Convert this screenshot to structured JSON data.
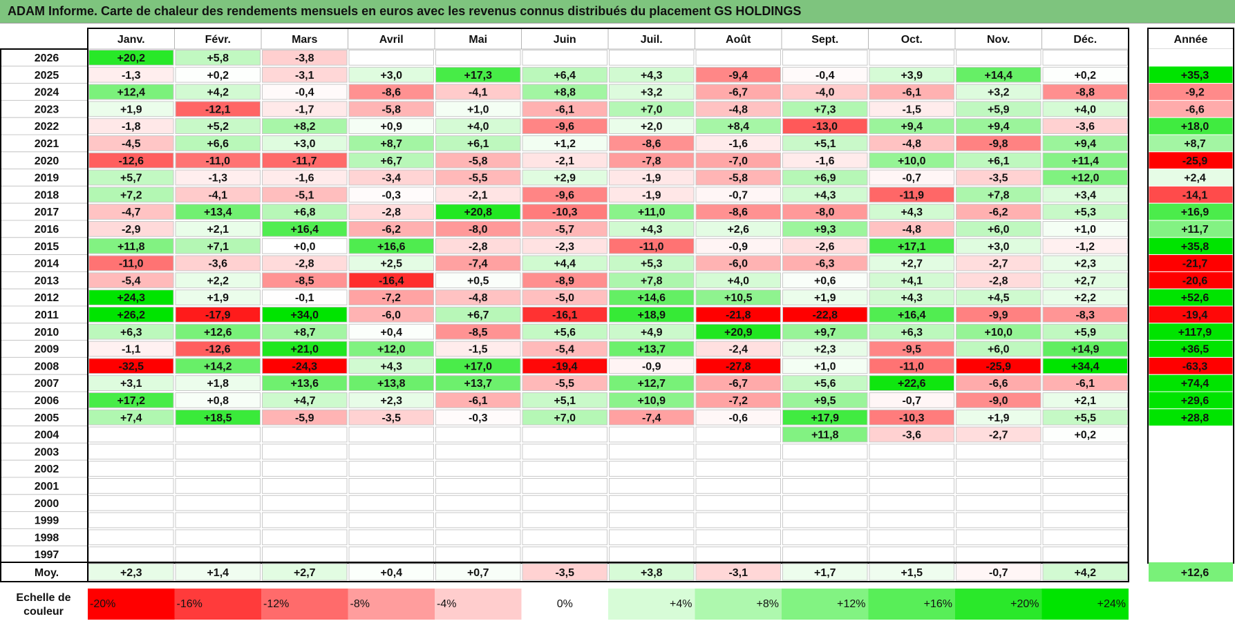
{
  "title": "ADAM Informe. Carte de chaleur des rendements mensuels en euros avec les revenus connus distribués du placement GS HOLDINGS",
  "chart_data": {
    "type": "heatmap",
    "months": [
      "Janv.",
      "Févr.",
      "Mars",
      "Avril",
      "Mai",
      "Juin",
      "Juil.",
      "Août",
      "Sept.",
      "Oct.",
      "Nov.",
      "Déc."
    ],
    "year_column_label": "Année",
    "rows": [
      {
        "year": "2026",
        "values": [
          "+20,2",
          "+5,8",
          "-3,8",
          "",
          "",
          "",
          "",
          "",
          "",
          "",
          "",
          ""
        ],
        "annual": ""
      },
      {
        "year": "2025",
        "values": [
          "-1,3",
          "+0,2",
          "-3,1",
          "+3,0",
          "+17,3",
          "+6,4",
          "+4,3",
          "-9,4",
          "-0,4",
          "+3,9",
          "+14,4",
          "+0,2"
        ],
        "annual": "+35,3"
      },
      {
        "year": "2024",
        "values": [
          "+12,4",
          "+4,2",
          "-0,4",
          "-8,6",
          "-4,1",
          "+8,8",
          "+3,2",
          "-6,7",
          "-4,0",
          "-6,1",
          "+3,2",
          "-8,8"
        ],
        "annual": "-9,2"
      },
      {
        "year": "2023",
        "values": [
          "+1,9",
          "-12,1",
          "-1,7",
          "-5,8",
          "+1,0",
          "-6,1",
          "+7,0",
          "-4,8",
          "+7,3",
          "-1,5",
          "+5,9",
          "+4,0"
        ],
        "annual": "-6,6"
      },
      {
        "year": "2022",
        "values": [
          "-1,8",
          "+5,2",
          "+8,2",
          "+0,9",
          "+4,0",
          "-9,6",
          "+2,0",
          "+8,4",
          "-13,0",
          "+9,4",
          "+9,4",
          "-3,6"
        ],
        "annual": "+18,0"
      },
      {
        "year": "2021",
        "values": [
          "-4,5",
          "+6,6",
          "+3,0",
          "+8,7",
          "+6,1",
          "+1,2",
          "-8,6",
          "-1,6",
          "+5,1",
          "-4,8",
          "-9,8",
          "+9,4"
        ],
        "annual": "+8,7"
      },
      {
        "year": "2020",
        "values": [
          "-12,6",
          "-11,0",
          "-11,7",
          "+6,7",
          "-5,8",
          "-2,1",
          "-7,8",
          "-7,0",
          "-1,6",
          "+10,0",
          "+6,1",
          "+11,4"
        ],
        "annual": "-25,9"
      },
      {
        "year": "2019",
        "values": [
          "+5,7",
          "-1,3",
          "-1,6",
          "-3,4",
          "-5,5",
          "+2,9",
          "-1,9",
          "-5,8",
          "+6,9",
          "-0,7",
          "-3,5",
          "+12,0"
        ],
        "annual": "+2,4"
      },
      {
        "year": "2018",
        "values": [
          "+7,2",
          "-4,1",
          "-5,1",
          "-0,3",
          "-2,1",
          "-9,6",
          "-1,9",
          "-0,7",
          "+4,3",
          "-11,9",
          "+7,8",
          "+3,4"
        ],
        "annual": "-14,1"
      },
      {
        "year": "2017",
        "values": [
          "-4,7",
          "+13,4",
          "+6,8",
          "-2,8",
          "+20,8",
          "-10,3",
          "+11,0",
          "-8,6",
          "-8,0",
          "+4,3",
          "-6,2",
          "+5,3"
        ],
        "annual": "+16,9"
      },
      {
        "year": "2016",
        "values": [
          "-2,9",
          "+2,1",
          "+16,4",
          "-6,2",
          "-8,0",
          "-5,7",
          "+4,3",
          "+2,6",
          "+9,3",
          "-4,8",
          "+6,0",
          "+1,0"
        ],
        "annual": "+11,7"
      },
      {
        "year": "2015",
        "values": [
          "+11,8",
          "+7,1",
          "+0,0",
          "+16,6",
          "-2,8",
          "-2,3",
          "-11,0",
          "-0,9",
          "-2,6",
          "+17,1",
          "+3,0",
          "-1,2"
        ],
        "annual": "+35,8"
      },
      {
        "year": "2014",
        "values": [
          "-11,0",
          "-3,6",
          "-2,8",
          "+2,5",
          "-7,4",
          "+4,4",
          "+5,3",
          "-6,0",
          "-6,3",
          "+2,7",
          "-2,7",
          "+2,3"
        ],
        "annual": "-21,7"
      },
      {
        "year": "2013",
        "values": [
          "-5,4",
          "+2,2",
          "-8,5",
          "-16,4",
          "+0,5",
          "-8,9",
          "+7,8",
          "+4,0",
          "+0,6",
          "+4,1",
          "-2,8",
          "+2,7"
        ],
        "annual": "-20,6"
      },
      {
        "year": "2012",
        "values": [
          "+24,3",
          "+1,9",
          "-0,1",
          "-7,2",
          "-4,8",
          "-5,0",
          "+14,6",
          "+10,5",
          "+1,9",
          "+4,3",
          "+4,5",
          "+2,2"
        ],
        "annual": "+52,6"
      },
      {
        "year": "2011",
        "values": [
          "+26,2",
          "-17,9",
          "+34,0",
          "-6,0",
          "+6,7",
          "-16,1",
          "+18,9",
          "-21,8",
          "-22,8",
          "+16,4",
          "-9,9",
          "-8,3"
        ],
        "annual": "-19,4"
      },
      {
        "year": "2010",
        "values": [
          "+6,3",
          "+12,6",
          "+8,7",
          "+0,4",
          "-8,5",
          "+5,6",
          "+4,9",
          "+20,9",
          "+9,7",
          "+6,3",
          "+10,0",
          "+5,9"
        ],
        "annual": "+117,9"
      },
      {
        "year": "2009",
        "values": [
          "-1,1",
          "-12,6",
          "+21,0",
          "+12,0",
          "-1,5",
          "-5,4",
          "+13,7",
          "-2,4",
          "+2,3",
          "-9,5",
          "+6,0",
          "+14,9"
        ],
        "annual": "+36,5"
      },
      {
        "year": "2008",
        "values": [
          "-32,5",
          "+14,2",
          "-24,3",
          "+4,3",
          "+17,0",
          "-19,4",
          "-0,9",
          "-27,8",
          "+1,0",
          "-11,0",
          "-25,9",
          "+34,4"
        ],
        "annual": "-63,3"
      },
      {
        "year": "2007",
        "values": [
          "+3,1",
          "+1,8",
          "+13,6",
          "+13,8",
          "+13,7",
          "-5,5",
          "+12,7",
          "-6,7",
          "+5,6",
          "+22,6",
          "-6,6",
          "-6,1"
        ],
        "annual": "+74,4"
      },
      {
        "year": "2006",
        "values": [
          "+17,2",
          "+0,8",
          "+4,7",
          "+2,3",
          "-6,1",
          "+5,1",
          "+10,9",
          "-7,2",
          "+9,5",
          "-0,7",
          "-9,0",
          "+2,1"
        ],
        "annual": "+29,6"
      },
      {
        "year": "2005",
        "values": [
          "+7,4",
          "+18,5",
          "-5,9",
          "-3,5",
          "-0,3",
          "+7,0",
          "-7,4",
          "-0,6",
          "+17,9",
          "-10,3",
          "+1,9",
          "+5,5"
        ],
        "annual": "+28,8"
      },
      {
        "year": "2004",
        "values": [
          "",
          "",
          "",
          "",
          "",
          "",
          "",
          "",
          "+11,8",
          "-3,6",
          "-2,7",
          "+0,2"
        ],
        "annual": ""
      },
      {
        "year": "2003",
        "values": [
          "",
          "",
          "",
          "",
          "",
          "",
          "",
          "",
          "",
          "",
          "",
          ""
        ],
        "annual": ""
      },
      {
        "year": "2002",
        "values": [
          "",
          "",
          "",
          "",
          "",
          "",
          "",
          "",
          "",
          "",
          "",
          ""
        ],
        "annual": ""
      },
      {
        "year": "2001",
        "values": [
          "",
          "",
          "",
          "",
          "",
          "",
          "",
          "",
          "",
          "",
          "",
          ""
        ],
        "annual": ""
      },
      {
        "year": "2000",
        "values": [
          "",
          "",
          "",
          "",
          "",
          "",
          "",
          "",
          "",
          "",
          "",
          ""
        ],
        "annual": ""
      },
      {
        "year": "1999",
        "values": [
          "",
          "",
          "",
          "",
          "",
          "",
          "",
          "",
          "",
          "",
          "",
          ""
        ],
        "annual": ""
      },
      {
        "year": "1998",
        "values": [
          "",
          "",
          "",
          "",
          "",
          "",
          "",
          "",
          "",
          "",
          "",
          ""
        ],
        "annual": ""
      },
      {
        "year": "1997",
        "values": [
          "",
          "",
          "",
          "",
          "",
          "",
          "",
          "",
          "",
          "",
          "",
          ""
        ],
        "annual": ""
      }
    ],
    "average": {
      "label": "Moy.",
      "values": [
        "+2,3",
        "+1,4",
        "+2,7",
        "+0,4",
        "+0,7",
        "-3,5",
        "+3,8",
        "-3,1",
        "+1,7",
        "+1,5",
        "-0,7",
        "+4,2"
      ],
      "annual": "+12,6"
    },
    "legend": {
      "label_line1": "Echelle de",
      "label_line2": "couleur",
      "steps": [
        {
          "label": "-20%",
          "color": "#ff0000"
        },
        {
          "label": "-16%",
          "color": "#ff3b3b"
        },
        {
          "label": "-12%",
          "color": "#ff6b6b"
        },
        {
          "label": "-8%",
          "color": "#ff9d9d"
        },
        {
          "label": "-4%",
          "color": "#ffcdcd"
        },
        {
          "label": "0%",
          "color": "#ffffff"
        },
        {
          "label": "+4%",
          "color": "#d7fcd7"
        },
        {
          "label": "+8%",
          "color": "#aef8ae"
        },
        {
          "label": "+12%",
          "color": "#82f382"
        },
        {
          "label": "+16%",
          "color": "#58ee58"
        },
        {
          "label": "+20%",
          "color": "#2ae82a"
        },
        {
          "label": "+24%",
          "color": "#00e400"
        }
      ]
    },
    "color_scale": {
      "negative_full": "#ff0000",
      "neutral": "#ffffff",
      "positive_full": "#00e400",
      "neg_saturation": -20,
      "pos_saturation": 24
    }
  }
}
